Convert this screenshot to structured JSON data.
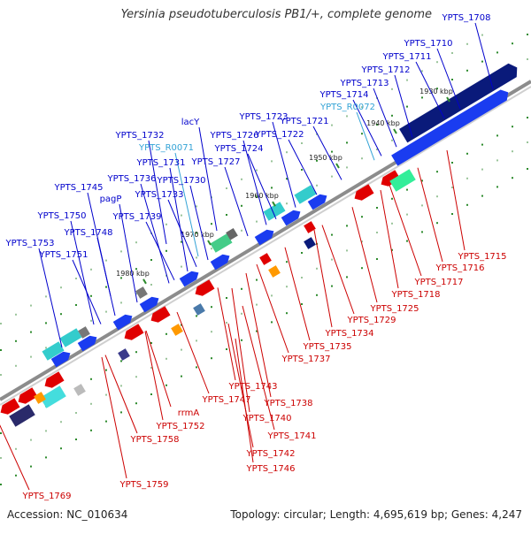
{
  "title": "Yersinia pseudotuberculosis PB1/+, complete genome",
  "footer": {
    "accession": "Accession: NC_010634",
    "topology": "Topology: circular; Length: 4,695,619 bp; Genes: 4,247"
  },
  "colors": {
    "plus_label": "#0000cc",
    "minus_label": "#cc0000",
    "rna_label": "#33a3d6",
    "backbone": "#8c8c8c",
    "tick": "#2e8b2e"
  },
  "ticks": [
    "1930 kbp",
    "1940 kbp",
    "1950 kbp",
    "1960 kbp",
    "1970 kbp",
    "1980 kbp"
  ],
  "upper_labels": [
    {
      "text": "YPTS_1708",
      "kind": "plus"
    },
    {
      "text": "YPTS_1710",
      "kind": "plus"
    },
    {
      "text": "YPTS_1711",
      "kind": "plus"
    },
    {
      "text": "YPTS_1712",
      "kind": "plus"
    },
    {
      "text": "YPTS_1713",
      "kind": "plus"
    },
    {
      "text": "YPTS_1714",
      "kind": "plus"
    },
    {
      "text": "YPTS_R0072",
      "kind": "rna"
    },
    {
      "text": "YPTS_1723",
      "kind": "plus"
    },
    {
      "text": "YPTS_1721",
      "kind": "plus"
    },
    {
      "text": "lacY",
      "kind": "plus"
    },
    {
      "text": "YPTS_1726",
      "kind": "plus"
    },
    {
      "text": "YPTS_1722",
      "kind": "plus"
    },
    {
      "text": "YPTS_1732",
      "kind": "plus"
    },
    {
      "text": "YPTS_R0071",
      "kind": "rna"
    },
    {
      "text": "YPTS_1724",
      "kind": "plus"
    },
    {
      "text": "YPTS_1731",
      "kind": "plus"
    },
    {
      "text": "YPTS_1727",
      "kind": "plus"
    },
    {
      "text": "YPTS_1736",
      "kind": "plus"
    },
    {
      "text": "YPTS_1730",
      "kind": "plus"
    },
    {
      "text": "YPTS_1745",
      "kind": "plus"
    },
    {
      "text": "YPTS_1733",
      "kind": "plus"
    },
    {
      "text": "pagP",
      "kind": "plus"
    },
    {
      "text": "YPTS_1750",
      "kind": "plus"
    },
    {
      "text": "YPTS_1739",
      "kind": "plus"
    },
    {
      "text": "YPTS_1748",
      "kind": "plus"
    },
    {
      "text": "YPTS_1753",
      "kind": "plus"
    },
    {
      "text": "YPTS_1751",
      "kind": "plus"
    }
  ],
  "lower_labels": [
    {
      "text": "YPTS_1715",
      "kind": "minus"
    },
    {
      "text": "YPTS_1716",
      "kind": "minus"
    },
    {
      "text": "YPTS_1717",
      "kind": "minus"
    },
    {
      "text": "YPTS_1718",
      "kind": "minus"
    },
    {
      "text": "YPTS_1725",
      "kind": "minus"
    },
    {
      "text": "YPTS_1729",
      "kind": "minus"
    },
    {
      "text": "YPTS_1734",
      "kind": "minus"
    },
    {
      "text": "YPTS_1735",
      "kind": "minus"
    },
    {
      "text": "YPTS_1737",
      "kind": "minus"
    },
    {
      "text": "YPTS_1743",
      "kind": "minus"
    },
    {
      "text": "YPTS_1738",
      "kind": "minus"
    },
    {
      "text": "YPTS_1747",
      "kind": "minus"
    },
    {
      "text": "YPTS_1740",
      "kind": "minus"
    },
    {
      "text": "rrmA",
      "kind": "minus"
    },
    {
      "text": "YPTS_1741",
      "kind": "minus"
    },
    {
      "text": "YPTS_1752",
      "kind": "minus"
    },
    {
      "text": "YPTS_1742",
      "kind": "minus"
    },
    {
      "text": "YPTS_1758",
      "kind": "minus"
    },
    {
      "text": "YPTS_1746",
      "kind": "minus"
    },
    {
      "text": "YPTS_1759",
      "kind": "minus"
    },
    {
      "text": "YPTS_1769",
      "kind": "minus"
    }
  ]
}
